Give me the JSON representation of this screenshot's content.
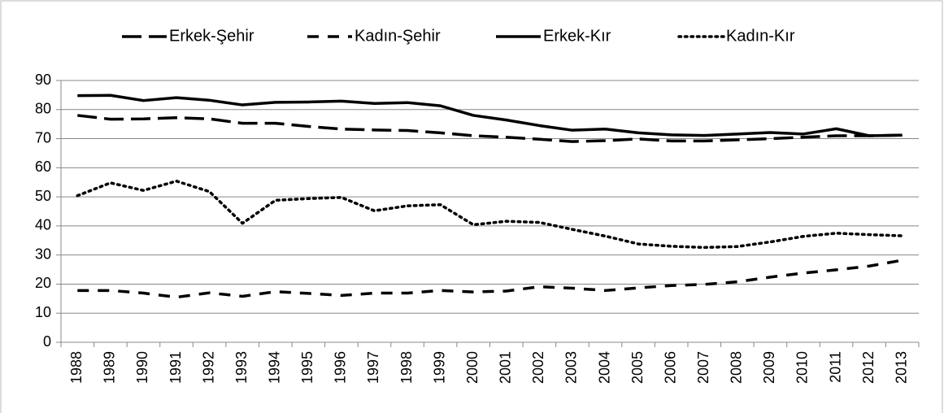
{
  "chart_data": {
    "type": "line",
    "categories": [
      "1988",
      "1989",
      "1990",
      "1991",
      "1992",
      "1993",
      "1994",
      "1995",
      "1996",
      "1997",
      "1998",
      "1999",
      "2000",
      "2001",
      "2002",
      "2003",
      "2004",
      "2005",
      "2006",
      "2007",
      "2008",
      "2009",
      "2010",
      "2011",
      "2012",
      "2013"
    ],
    "series": [
      {
        "name": "Erkek-Şehir",
        "color": "#000000",
        "dash": "long-dash",
        "values": [
          78,
          76.7,
          76.8,
          77.2,
          76.8,
          75.3,
          75.3,
          74.2,
          73.3,
          73,
          72.8,
          72,
          71,
          70.5,
          69.8,
          69,
          69.3,
          69.9,
          69.2,
          69.2,
          69.6,
          70,
          70.5,
          71,
          71,
          71.2
        ]
      },
      {
        "name": "Kadın-Şehir",
        "color": "#000000",
        "dash": "dash",
        "values": [
          17.8,
          17.8,
          16.9,
          15.5,
          17,
          15.8,
          17.4,
          16.8,
          16.1,
          16.9,
          16.9,
          17.8,
          17.3,
          17.6,
          19.1,
          18.6,
          17.8,
          18.7,
          19.5,
          19.9,
          20.8,
          22.4,
          23.8,
          24.9,
          26.2,
          28.2
        ]
      },
      {
        "name": "Erkek-Kır",
        "color": "#000000",
        "dash": "solid",
        "values": [
          84.8,
          84.9,
          83.1,
          84.1,
          83.2,
          81.6,
          82.5,
          82.6,
          82.9,
          82.1,
          82.4,
          81.3,
          78,
          76.4,
          74.5,
          72.9,
          73.3,
          72,
          71.3,
          71.1,
          71.6,
          72.1,
          71.6,
          73.4,
          71,
          71.2
        ]
      },
      {
        "name": "Kadın-Kır",
        "color": "#000000",
        "dash": "dot",
        "values": [
          50.4,
          54.8,
          52.2,
          55.4,
          51.8,
          40.9,
          48.8,
          49.4,
          49.8,
          45.2,
          46.9,
          47.3,
          40.4,
          41.6,
          41.2,
          38.8,
          36.5,
          33.8,
          33,
          32.6,
          32.9,
          34.5,
          36.4,
          37.5,
          37,
          36.6
        ]
      }
    ],
    "ylim": [
      0,
      90
    ],
    "yticks": [
      0,
      10,
      20,
      30,
      40,
      50,
      60,
      70,
      80,
      90
    ],
    "grid": true,
    "legend": "top"
  }
}
